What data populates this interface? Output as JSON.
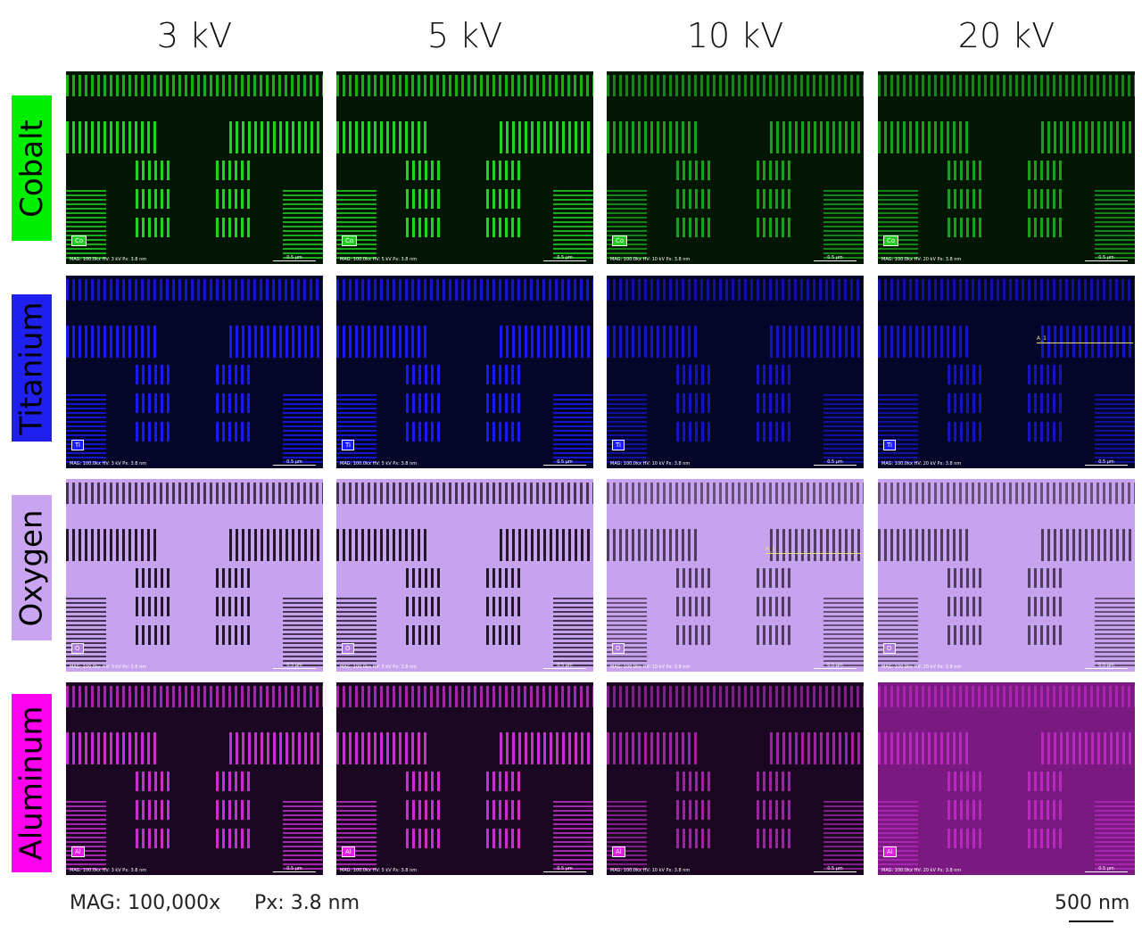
{
  "columns": [
    "3 kV",
    "5 kV",
    "10 kV",
    "20 kV"
  ],
  "rows": [
    {
      "element": "Cobalt",
      "symbol": "Co",
      "label_color": "#00ee00",
      "fg": "#22dd22",
      "bg": "#031503",
      "badge_bg": "#22cc22"
    },
    {
      "element": "Titanium",
      "symbol": "Ti",
      "label_color": "#2020ee",
      "fg": "#1a1aff",
      "bg": "#05052a",
      "badge_bg": "#1a1aff"
    },
    {
      "element": "Oxygen",
      "symbol": "O",
      "label_color": "#c9a4f0",
      "fg": "#1a1020",
      "bg": "#c7a2ee",
      "badge_bg": "#b080e0"
    },
    {
      "element": "Aluminum",
      "symbol": "Al",
      "label_color": "#ff00ee",
      "fg": "#d030d8",
      "bg": "#1a0620",
      "badge_bg": "#e020e0"
    }
  ],
  "panel_footers": [
    "MAG: 100.0kx   HV: 3 kV   Px: 3.8 nm",
    "MAG: 100.0kx   HV: 5 kV   Px: 3.8 nm",
    "MAG: 100.0kx   HV: 10 kV   Px: 3.8 nm",
    "MAG: 100.0kx   HV: 20 kV   Px: 3.8 nm"
  ],
  "panel_scale": "0.5 µm",
  "line_label": "A_1",
  "footer": {
    "mag": "MAG: 100,000x",
    "px": "Px: 3.8 nm",
    "scalebar": "500 nm"
  }
}
